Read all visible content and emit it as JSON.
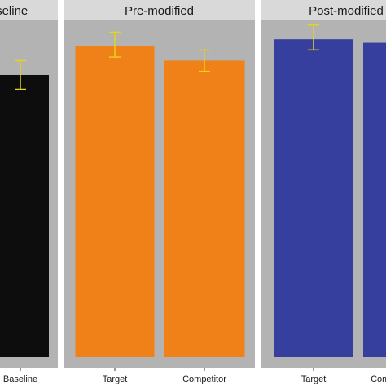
{
  "chart_data": {
    "type": "bar",
    "title": "",
    "xlabel": "",
    "ylabel": "",
    "ylim": [
      0,
      100
    ],
    "grid": false,
    "legend": "none",
    "error_bar_color": "#e8d21a",
    "panel_background": "#b3b3b3",
    "strip_background": "#d9d9d9",
    "panels": [
      {
        "strip": "Baseline",
        "categories": [
          "Baseline"
        ],
        "values": [
          79
        ],
        "errors": [
          [
            75,
            83
          ]
        ],
        "color": "#0d0d0d"
      },
      {
        "strip": "Pre-modified",
        "categories": [
          "Target",
          "Competitor"
        ],
        "values": [
          87,
          83
        ],
        "errors": [
          [
            84,
            91
          ],
          [
            80,
            86
          ]
        ],
        "color": "#f08018"
      },
      {
        "strip": "Post-modified",
        "categories": [
          "Target",
          "Competitor"
        ],
        "values": [
          89,
          88
        ],
        "errors": [
          [
            86,
            93
          ],
          [
            85,
            91
          ]
        ],
        "color": "#363f9e"
      }
    ]
  }
}
